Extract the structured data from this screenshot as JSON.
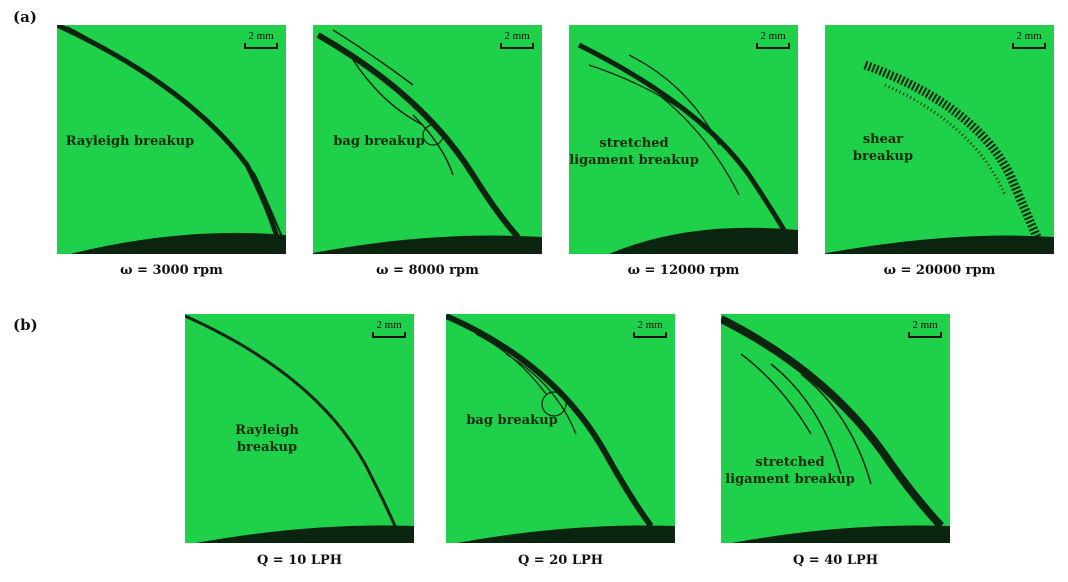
{
  "labels": {
    "a": "(a)",
    "b": "(b)"
  },
  "scale": "2 mm",
  "row_a": [
    {
      "regime": "Rayleigh breakup",
      "caption": "ω = 3000 rpm"
    },
    {
      "regime": "bag breakup",
      "caption": "ω = 8000 rpm"
    },
    {
      "regime": "stretched ligament breakup",
      "caption": "ω = 12000 rpm"
    },
    {
      "regime": "shear breakup",
      "caption": "ω = 20000 rpm"
    }
  ],
  "row_b": [
    {
      "regime": "Rayleigh breakup",
      "caption": "Q = 10 LPH"
    },
    {
      "regime": "bag breakup",
      "caption": "Q = 20 LPH"
    },
    {
      "regime": "stretched ligament breakup",
      "caption": "Q = 40 LPH"
    }
  ],
  "colors": {
    "background": "#1fd14a",
    "liquid": "#0b2410"
  }
}
